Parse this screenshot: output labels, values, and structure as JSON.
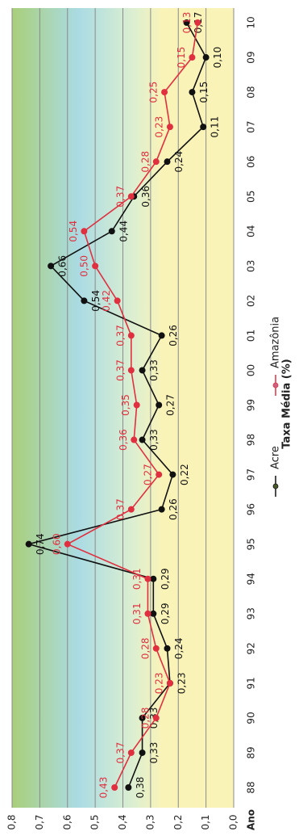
{
  "chart_data": {
    "type": "line",
    "x_label": "Ano",
    "y_label": "Taxa Média (%)",
    "categories": [
      "88",
      "89",
      "90",
      "91",
      "92",
      "93",
      "94",
      "95",
      "96",
      "97",
      "98",
      "99",
      "00",
      "01",
      "02",
      "03",
      "04",
      "05",
      "06",
      "07",
      "08",
      "09",
      "10"
    ],
    "series": [
      {
        "name": "Acre",
        "color": "#111111",
        "marker_color": "#4a5a2a",
        "values": [
          0.38,
          0.33,
          0.33,
          0.23,
          0.24,
          0.29,
          0.29,
          0.74,
          0.26,
          0.22,
          0.33,
          0.27,
          0.33,
          0.26,
          0.54,
          0.66,
          0.44,
          0.36,
          0.24,
          0.11,
          0.15,
          0.1,
          0.17
        ],
        "value_labels": [
          "0,38",
          "0,33",
          "0,33",
          "0,23",
          "0,24",
          "0,29",
          "0,29",
          "0,74",
          "0,26",
          "0,22",
          "0,33",
          "0,27",
          "0,33",
          "0,26",
          "0,54",
          "0,66",
          "0,44",
          "0,36",
          "0,24",
          "0,11",
          "0,15",
          "0,10",
          "0,17"
        ]
      },
      {
        "name": "Amazônia",
        "color": "#e03040",
        "marker_color": "#d06080",
        "values": [
          0.43,
          0.37,
          0.28,
          0.23,
          0.28,
          0.31,
          0.31,
          0.6,
          0.37,
          0.27,
          0.36,
          0.35,
          0.37,
          0.37,
          0.42,
          0.5,
          0.54,
          0.37,
          0.28,
          0.23,
          0.25,
          0.15,
          0.13
        ],
        "value_labels": [
          "0,43",
          "0,37",
          "0,28",
          "0,23",
          "0,28",
          "0,31",
          "0,31",
          "0,60",
          "0,37",
          "0,27",
          "0,36",
          "0,35",
          "0,37",
          "0,37",
          "0,42",
          "0,50",
          "0,54",
          "0,37",
          "0,28",
          "0,23",
          "0,25",
          "0,15",
          "0,13"
        ]
      }
    ],
    "ylim": [
      0,
      0.8
    ],
    "yticks": [
      {
        "value": 0,
        "label": "0,0"
      },
      {
        "value": 0.1,
        "label": "0,1"
      },
      {
        "value": 0.2,
        "label": "0,2"
      },
      {
        "value": 0.3,
        "label": "0,3"
      },
      {
        "value": 0.4,
        "label": "0,4"
      },
      {
        "value": 0.5,
        "label": "0,5"
      },
      {
        "value": 0.6,
        "label": "0,6"
      },
      {
        "value": 0.7,
        "label": "0,7"
      },
      {
        "value": 0.8,
        "label": "0,8"
      }
    ],
    "grid": true,
    "legend": "bottom"
  }
}
